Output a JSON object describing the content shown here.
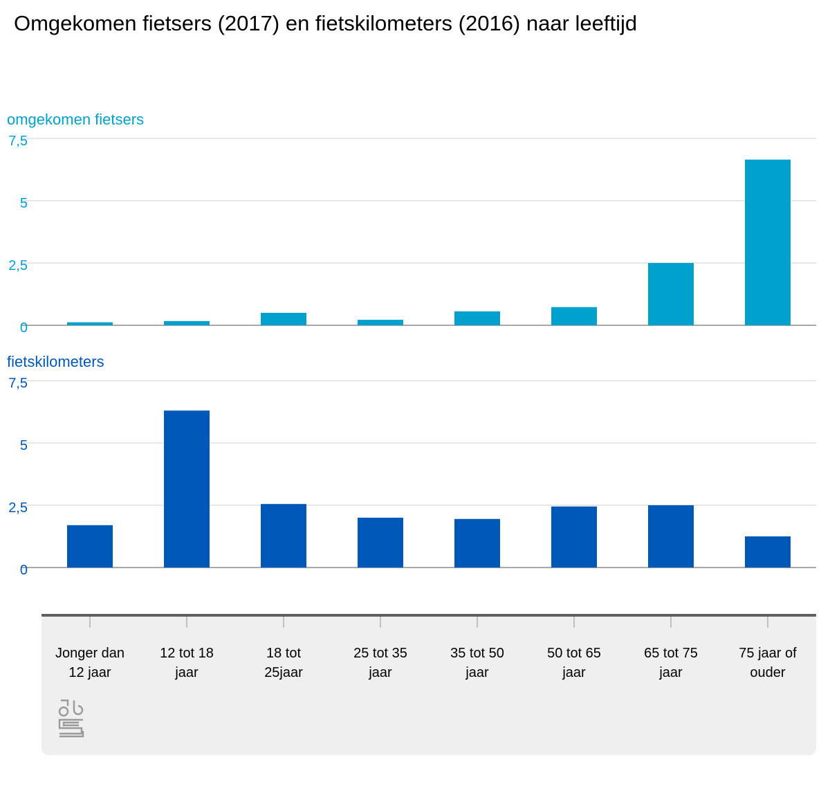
{
  "title": "Omgekomen fietsers (2017) en fietskilometers (2016) naar leeftijd",
  "chart_data": {
    "type": "bar",
    "title": "Omgekomen fietsers (2017) en fietskilometers (2016) naar leeftijd",
    "categories": [
      [
        "Jonger dan",
        "12 jaar"
      ],
      [
        "12 tot 18",
        "jaar"
      ],
      [
        "18 tot",
        "25jaar"
      ],
      [
        "25 tot 35",
        "jaar"
      ],
      [
        "35 tot 50",
        "jaar"
      ],
      [
        "50 tot 65",
        "jaar"
      ],
      [
        "65 tot 75",
        "jaar"
      ],
      [
        "75 jaar of",
        "ouder"
      ]
    ],
    "series": [
      {
        "name": "omgekomen fietsers",
        "color": "#00a1cd",
        "values": [
          0.12,
          0.17,
          0.5,
          0.22,
          0.56,
          0.73,
          2.5,
          6.65
        ]
      },
      {
        "name": "fietskilometers",
        "color": "#0058b8",
        "values": [
          1.7,
          6.3,
          2.55,
          2.0,
          1.95,
          2.45,
          2.5,
          1.25
        ]
      }
    ],
    "ylim": [
      0,
      7.5
    ],
    "yticks": [
      {
        "value": 0,
        "label": "0"
      },
      {
        "value": 2.5,
        "label": "2,5"
      },
      {
        "value": 5,
        "label": "5"
      },
      {
        "value": 7.5,
        "label": "7,5"
      }
    ],
    "grid": true,
    "layout": "small-multiples-stacked",
    "logo": "cbs"
  }
}
